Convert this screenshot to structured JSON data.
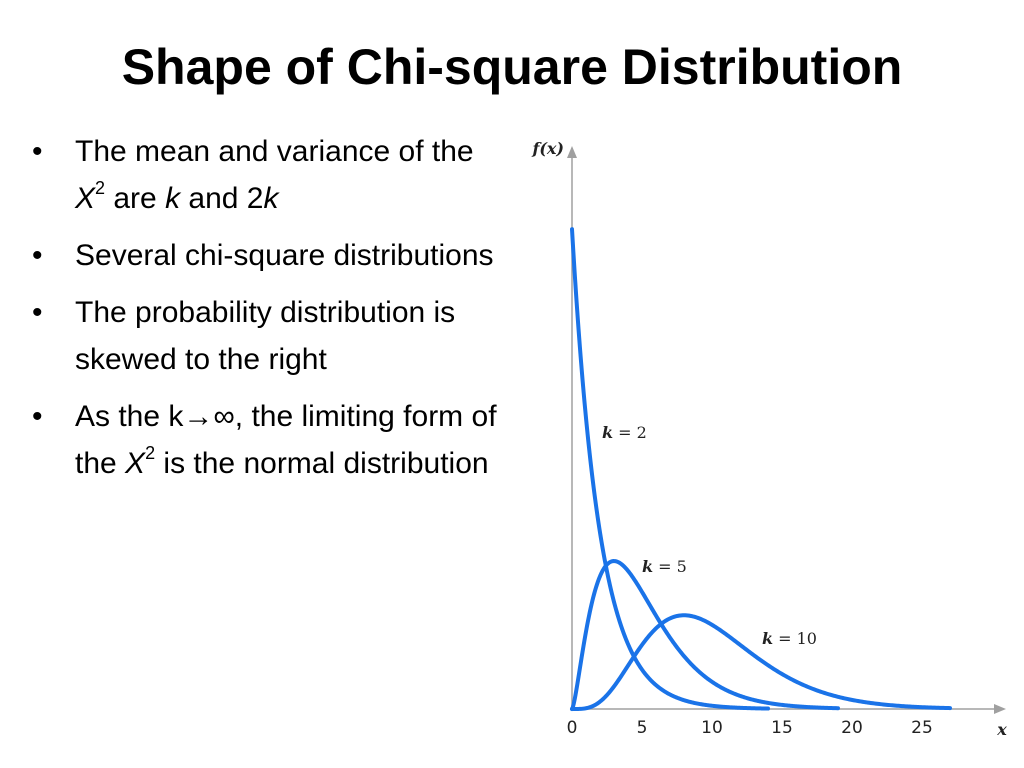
{
  "slide": {
    "title": "Shape of Chi-square Distribution",
    "bullets": [
      {
        "parts": [
          {
            "text": "The mean and variance of the "
          },
          {
            "text": "X",
            "style": "italic"
          },
          {
            "text": "2",
            "style": "sup"
          },
          {
            "text": " are "
          },
          {
            "text": "k",
            "style": "italic"
          },
          {
            "text": " and 2"
          },
          {
            "text": "k",
            "style": "italic"
          }
        ]
      },
      {
        "parts": [
          {
            "text": "Several chi-square distributions"
          }
        ]
      },
      {
        "parts": [
          {
            "text": "The probability distribution is skewed to the right"
          }
        ]
      },
      {
        "parts": [
          {
            "text": "As the k→∞, the limiting form of the  "
          },
          {
            "text": "X",
            "style": "italic"
          },
          {
            "text": "2",
            "style": "sup"
          },
          {
            "text": " is the normal distribution"
          }
        ]
      }
    ],
    "bullet_symbol": "•"
  },
  "chart_data": {
    "type": "line",
    "xlabel": "x",
    "ylabel": "f(x)",
    "xlim": [
      0,
      30
    ],
    "ylim": [
      0,
      0.52
    ],
    "x_ticks": [
      0,
      5,
      10,
      15,
      20,
      25
    ],
    "grid": false,
    "series": [
      {
        "name": "k = 2",
        "label_k": "k",
        "label_value": "= 2",
        "df": 2,
        "x_max": 14
      },
      {
        "name": "k = 5",
        "label_k": "k",
        "label_value": "= 5",
        "df": 5,
        "x_max": 19
      },
      {
        "name": "k = 10",
        "label_k": "k",
        "label_value": "= 10",
        "df": 10,
        "x_max": 27
      }
    ],
    "line_color": "#1a73e8",
    "axis_color": "#a0a0a0"
  }
}
